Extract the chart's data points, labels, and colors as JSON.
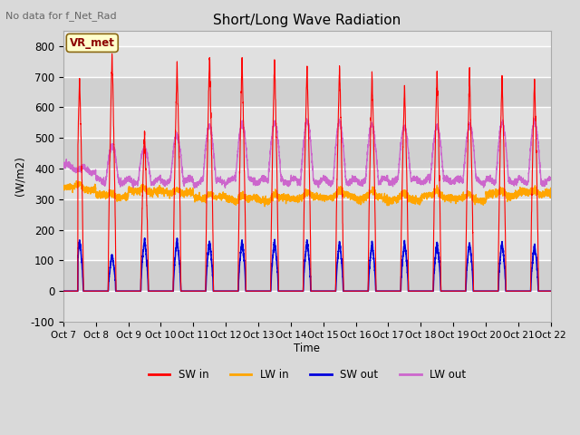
{
  "title": "Short/Long Wave Radiation",
  "xlabel": "Time",
  "ylabel": "(W/m2)",
  "ylim": [
    -100,
    850
  ],
  "yticks": [
    -100,
    0,
    100,
    200,
    300,
    400,
    500,
    600,
    700,
    800
  ],
  "x_labels": [
    "Oct 7",
    "Oct 8",
    "Oct 9",
    "Oct 10",
    "Oct 11",
    "Oct 12",
    "Oct 13",
    "Oct 14",
    "Oct 15",
    "Oct 16",
    "Oct 17",
    "Oct 18",
    "Oct 19",
    "Oct 20",
    "Oct 21",
    "Oct 22"
  ],
  "top_left_text": "No data for f_Net_Rad",
  "box_label": "VR_met",
  "legend": [
    {
      "label": "SW in",
      "color": "#ff0000"
    },
    {
      "label": "LW in",
      "color": "#ffa500"
    },
    {
      "label": "SW out",
      "color": "#0000dd"
    },
    {
      "label": "LW out",
      "color": "#cc66cc"
    }
  ],
  "sw_in_peaks": [
    700,
    780,
    520,
    740,
    770,
    760,
    760,
    740,
    740,
    710,
    670,
    720,
    710,
    710,
    700
  ],
  "lw_out_peaks": [
    390,
    470,
    460,
    505,
    545,
    550,
    550,
    550,
    545,
    540,
    540,
    545,
    545,
    545,
    545
  ],
  "lw_out_base": [
    390,
    360,
    360,
    360,
    355,
    360,
    360,
    360,
    360,
    360,
    360,
    360,
    360,
    360,
    360
  ],
  "lw_in_base": [
    335,
    310,
    325,
    320,
    305,
    300,
    300,
    305,
    310,
    305,
    300,
    310,
    300,
    315,
    320
  ],
  "sw_out_peaks": [
    170,
    120,
    170,
    170,
    165,
    165,
    165,
    165,
    160,
    155,
    160,
    160,
    160,
    160,
    155
  ],
  "bg_stripe_colors": [
    "#e8e8e8",
    "#d8d8d8"
  ],
  "plot_bg": "#e0e0e0",
  "title_fontsize": 11,
  "n_days": 15,
  "n_points_per_day": 288
}
